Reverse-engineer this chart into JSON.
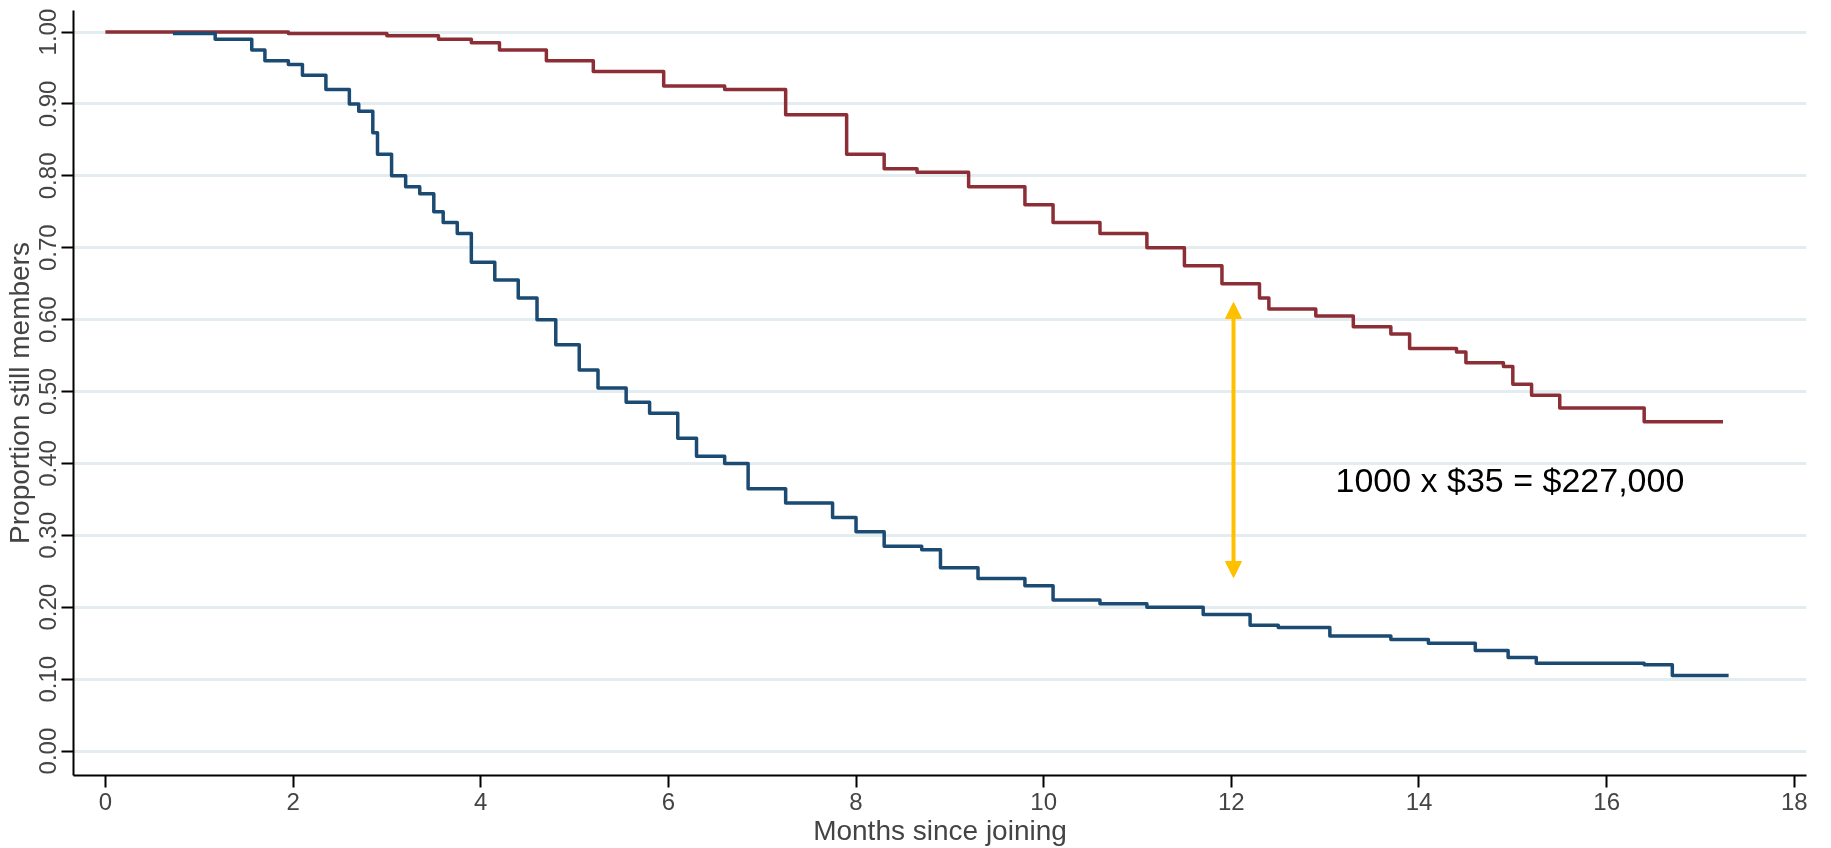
{
  "chart_data": {
    "type": "step",
    "xlabel": "Months since joining",
    "ylabel": "Proportion still members",
    "xlim": [
      -0.34,
      18.13
    ],
    "ylim": [
      -0.034,
      1.03
    ],
    "xticks": [
      0,
      2,
      4,
      6,
      8,
      10,
      12,
      14,
      16,
      18
    ],
    "yticks": [
      {
        "value": 0,
        "label": "0.00"
      },
      {
        "value": 0.1,
        "label": "0.10"
      },
      {
        "value": 0.2,
        "label": "0.20"
      },
      {
        "value": 0.3,
        "label": "0.30"
      },
      {
        "value": 0.4,
        "label": "0.40"
      },
      {
        "value": 0.5,
        "label": "0.50"
      },
      {
        "value": 0.6,
        "label": "0.60"
      },
      {
        "value": 0.7,
        "label": "0.70"
      },
      {
        "value": 0.8,
        "label": "0.80"
      },
      {
        "value": 0.9,
        "label": "0.90"
      },
      {
        "value": 1,
        "label": "1.00"
      }
    ],
    "grid": "y",
    "marker": "none",
    "line_style": "solid",
    "series": [
      {
        "color": "#8b2e36",
        "x": [
          0,
          1.95,
          3.0,
          3.55,
          3.9,
          4.2,
          4.7,
          5.2,
          5.95,
          6.6,
          7.25,
          7.9,
          8.3,
          8.65,
          9.2,
          9.8,
          10.1,
          10.6,
          11.1,
          11.5,
          11.9,
          12.3,
          12.4,
          12.9,
          13.3,
          13.7,
          13.9,
          14.4,
          14.5,
          14.9,
          15.0,
          15.2,
          15.5,
          16.4,
          17.24
        ],
        "values": [
          1.0,
          0.998,
          0.995,
          0.99,
          0.985,
          0.975,
          0.96,
          0.945,
          0.925,
          0.92,
          0.885,
          0.83,
          0.81,
          0.805,
          0.785,
          0.76,
          0.735,
          0.72,
          0.7,
          0.675,
          0.65,
          0.63,
          0.615,
          0.605,
          0.59,
          0.58,
          0.56,
          0.555,
          0.54,
          0.535,
          0.51,
          0.495,
          0.477,
          0.458,
          0.458
        ]
      },
      {
        "color": "#1b4a72",
        "x": [
          0.72,
          1.17,
          1.56,
          1.7,
          1.95,
          2.1,
          2.35,
          2.6,
          2.7,
          2.85,
          2.9,
          3.05,
          3.2,
          3.35,
          3.5,
          3.6,
          3.75,
          3.9,
          4.15,
          4.4,
          4.6,
          4.8,
          5.05,
          5.25,
          5.55,
          5.8,
          6.1,
          6.3,
          6.6,
          6.85,
          7.25,
          7.75,
          8.0,
          8.3,
          8.7,
          8.9,
          9.3,
          9.8,
          10.1,
          10.6,
          11.1,
          11.7,
          12.2,
          12.5,
          13.05,
          13.7,
          14.1,
          14.6,
          14.95,
          15.25,
          16.3,
          16.4,
          16.7,
          17.3
        ],
        "values": [
          0.998,
          0.99,
          0.975,
          0.96,
          0.955,
          0.94,
          0.92,
          0.9,
          0.89,
          0.86,
          0.83,
          0.8,
          0.785,
          0.775,
          0.75,
          0.735,
          0.72,
          0.68,
          0.655,
          0.63,
          0.6,
          0.565,
          0.53,
          0.505,
          0.485,
          0.47,
          0.435,
          0.41,
          0.4,
          0.365,
          0.345,
          0.325,
          0.305,
          0.285,
          0.28,
          0.255,
          0.24,
          0.23,
          0.21,
          0.205,
          0.2,
          0.19,
          0.175,
          0.172,
          0.16,
          0.155,
          0.15,
          0.14,
          0.13,
          0.122,
          0.122,
          0.12,
          0.105,
          0.105
        ]
      }
    ],
    "annotations": [
      "1000 x $35 = $227,000"
    ]
  }
}
